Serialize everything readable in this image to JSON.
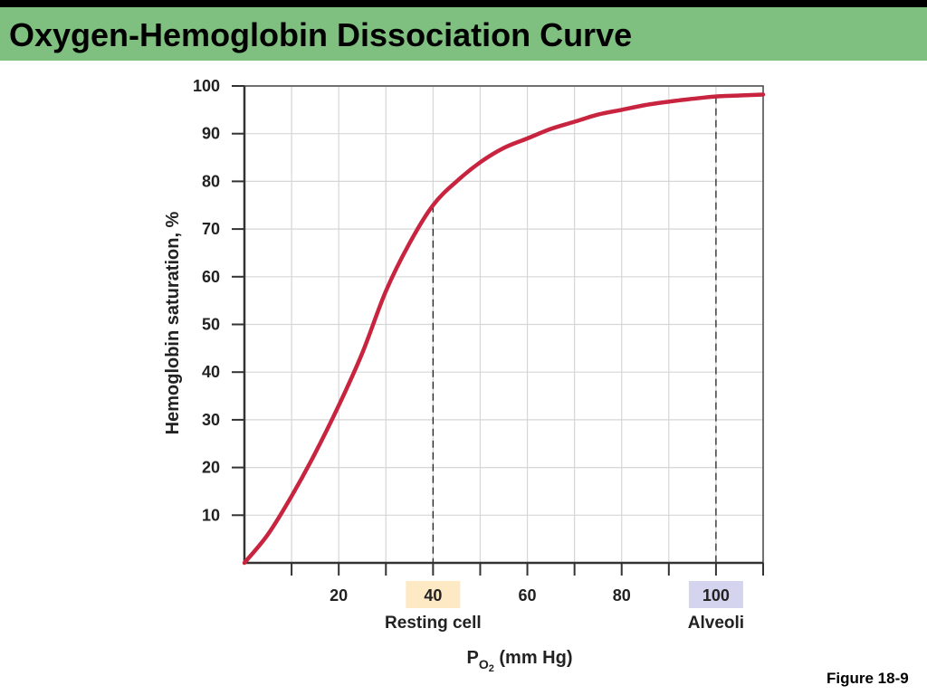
{
  "slide": {
    "title": "Oxygen-Hemoglobin Dissociation Curve",
    "figure_label": "Figure 18-9"
  },
  "chart_data": {
    "type": "line",
    "title": "",
    "xlabel": "P",
    "xlabel_subscript": "O",
    "xlabel_subscript2": "2",
    "xlabel_suffix": " (mm Hg)",
    "ylabel": "Hemoglobin saturation, %",
    "xlim": [
      0,
      110
    ],
    "ylim": [
      0,
      100
    ],
    "x_ticks": [
      20,
      40,
      60,
      80,
      100
    ],
    "x_tick_labels": [
      "20",
      "40",
      "60",
      "80",
      "100"
    ],
    "y_ticks": [
      10,
      20,
      30,
      40,
      50,
      60,
      70,
      80,
      90,
      100
    ],
    "y_tick_labels": [
      "10",
      "20",
      "30",
      "40",
      "50",
      "60",
      "70",
      "80",
      "90",
      "100"
    ],
    "grid": true,
    "series": [
      {
        "color": "#c8243f",
        "x": [
          0,
          5,
          10,
          15,
          20,
          25,
          30,
          35,
          40,
          45,
          50,
          55,
          60,
          65,
          70,
          75,
          80,
          85,
          90,
          95,
          100,
          105,
          110
        ],
        "y": [
          0,
          6,
          14,
          23,
          33,
          44,
          57,
          67,
          75,
          80,
          84,
          87,
          89,
          91,
          92.5,
          94,
          95,
          96,
          96.7,
          97.3,
          97.8,
          98,
          98.2
        ]
      }
    ],
    "reference_lines": [
      {
        "x": 40,
        "y": 75,
        "tick_label": "40",
        "label": "Resting cell",
        "highlight": "#fde9c4"
      },
      {
        "x": 100,
        "y": 97.8,
        "tick_label": "100",
        "label": "Alveoli",
        "highlight": "#d4d4ee"
      }
    ]
  }
}
